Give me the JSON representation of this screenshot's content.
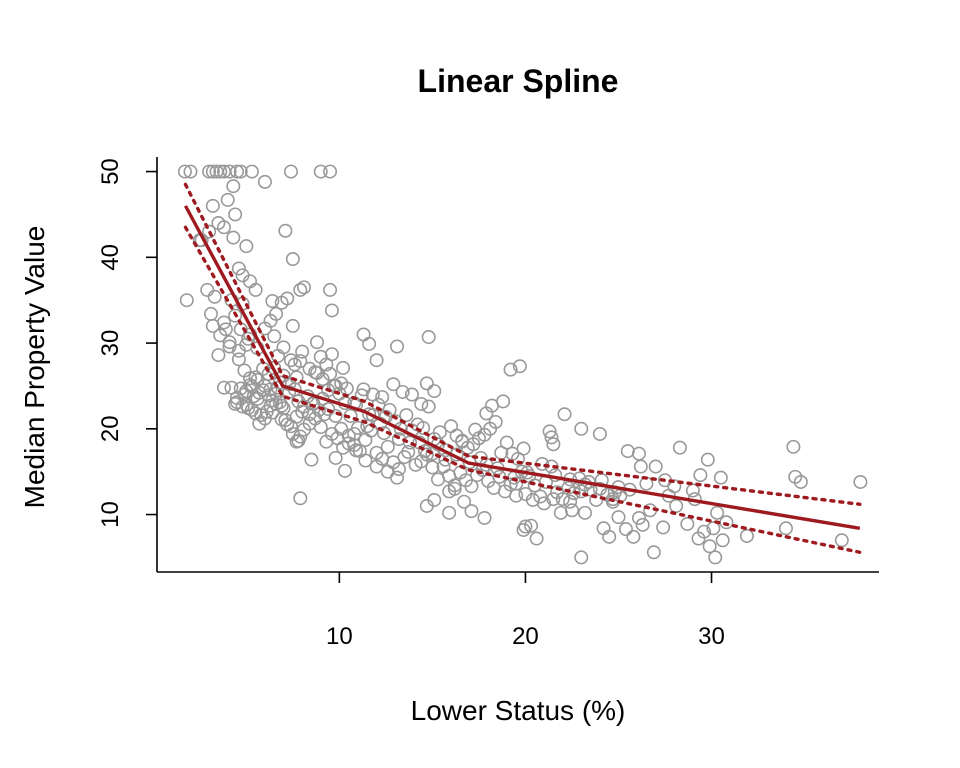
{
  "chart_data": {
    "type": "scatter",
    "title": "Linear Spline",
    "xlabel": "Lower Status (%)",
    "ylabel": "Median Property Value",
    "xlim": [
      0.2,
      39.0
    ],
    "ylim": [
      3.3,
      51.7
    ],
    "x_ticks": [
      10,
      20,
      30
    ],
    "y_ticks": [
      10,
      20,
      30,
      40,
      50
    ],
    "grid": false,
    "colors": {
      "points": "#999999",
      "fit": "#9E1A1F"
    },
    "points": [
      [
        1.7,
        50
      ],
      [
        2.0,
        50
      ],
      [
        3.0,
        50
      ],
      [
        3.2,
        50
      ],
      [
        3.4,
        50
      ],
      [
        3.6,
        50
      ],
      [
        3.8,
        50
      ],
      [
        4.1,
        50
      ],
      [
        4.5,
        50
      ],
      [
        4.7,
        50
      ],
      [
        5.3,
        50
      ],
      [
        7.4,
        50
      ],
      [
        9.0,
        50
      ],
      [
        9.5,
        50
      ],
      [
        6.0,
        48.8
      ],
      [
        4.3,
        48.3
      ],
      [
        4.0,
        46.7
      ],
      [
        3.2,
        46
      ],
      [
        3.5,
        44.0
      ],
      [
        4.4,
        45.0
      ],
      [
        3.8,
        43.5
      ],
      [
        2.5,
        42
      ],
      [
        3.0,
        43
      ],
      [
        4.3,
        42.3
      ],
      [
        7.1,
        43.1
      ],
      [
        5.0,
        41.3
      ],
      [
        4.6,
        38.7
      ],
      [
        4.8,
        37.9
      ],
      [
        5.2,
        37.2
      ],
      [
        5.5,
        36.2
      ],
      [
        2.9,
        36.2
      ],
      [
        4.8,
        34.6
      ],
      [
        3.1,
        33.4
      ],
      [
        4.4,
        33.2
      ],
      [
        3.8,
        32.4
      ],
      [
        3.2,
        32
      ],
      [
        3.9,
        31.6
      ],
      [
        4.7,
        31.6
      ],
      [
        5.2,
        31.0
      ],
      [
        4.1,
        30.1
      ],
      [
        5.0,
        29.8
      ],
      [
        4.6,
        29.1
      ],
      [
        3.5,
        28.6
      ],
      [
        6.3,
        32.6
      ],
      [
        6.6,
        33.4
      ],
      [
        6.4,
        34.9
      ],
      [
        7.2,
        35.2
      ],
      [
        6.9,
        34.7
      ],
      [
        7.5,
        39.8
      ],
      [
        7.9,
        36.2
      ],
      [
        8.1,
        36.5
      ],
      [
        9.5,
        36.2
      ],
      [
        8.8,
        30.1
      ],
      [
        9.6,
        33.8
      ],
      [
        7.5,
        32.0
      ],
      [
        8.0,
        29.0
      ],
      [
        9.0,
        28.4
      ],
      [
        9.6,
        28.7
      ],
      [
        9.3,
        27.5
      ],
      [
        10.2,
        27.1
      ],
      [
        11.3,
        31.0
      ],
      [
        11.6,
        29.9
      ],
      [
        13.1,
        29.6
      ],
      [
        14.8,
        30.7
      ],
      [
        12.0,
        28.0
      ],
      [
        7.6,
        27.5
      ],
      [
        6.7,
        28.5
      ],
      [
        6.5,
        27.1
      ],
      [
        6.2,
        26.4
      ],
      [
        5.9,
        27.0
      ],
      [
        5.5,
        26.0
      ],
      [
        5.2,
        25.1
      ],
      [
        4.9,
        24.0
      ],
      [
        4.5,
        23.1
      ],
      [
        4.2,
        24.8
      ],
      [
        3.8,
        24.8
      ],
      [
        5.0,
        22.8
      ],
      [
        5.3,
        22.2
      ],
      [
        5.6,
        23.5
      ],
      [
        5.8,
        21.6
      ],
      [
        6.1,
        22.0
      ],
      [
        6.4,
        23.3
      ],
      [
        6.6,
        24.1
      ],
      [
        6.8,
        23.1
      ],
      [
        7.0,
        22.4
      ],
      [
        7.3,
        24.3
      ],
      [
        7.6,
        24.6
      ],
      [
        7.8,
        23.2
      ],
      [
        8.1,
        22.6
      ],
      [
        8.4,
        21.7
      ],
      [
        8.6,
        23.0
      ],
      [
        8.9,
        22.2
      ],
      [
        9.2,
        21.7
      ],
      [
        9.4,
        24.5
      ],
      [
        9.7,
        25.0
      ],
      [
        10.0,
        24.1
      ],
      [
        10.3,
        23.0
      ],
      [
        10.6,
        21.5
      ],
      [
        10.9,
        22.8
      ],
      [
        11.2,
        23.9
      ],
      [
        11.5,
        20.3
      ],
      [
        11.8,
        21.6
      ],
      [
        12.1,
        22.8
      ],
      [
        12.4,
        19.5
      ],
      [
        12.7,
        22.2
      ],
      [
        13.0,
        20.9
      ],
      [
        13.3,
        20.0
      ],
      [
        13.6,
        21.6
      ],
      [
        13.9,
        19.8
      ],
      [
        14.2,
        20.5
      ],
      [
        14.5,
        20.1
      ],
      [
        14.8,
        22.6
      ],
      [
        15.1,
        18.8
      ],
      [
        15.4,
        19.6
      ],
      [
        15.7,
        17.5
      ],
      [
        16.0,
        20.3
      ],
      [
        16.3,
        19.2
      ],
      [
        16.6,
        18.5
      ],
      [
        16.9,
        17.8
      ],
      [
        17.2,
        18.2
      ],
      [
        17.5,
        18.9
      ],
      [
        17.8,
        19.3
      ],
      [
        18.1,
        20.0
      ],
      [
        18.4,
        20.8
      ],
      [
        18.7,
        17.2
      ],
      [
        19.0,
        18.4
      ],
      [
        19.3,
        17.1
      ],
      [
        19.6,
        16.5
      ],
      [
        19.9,
        17.7
      ],
      [
        5.4,
        23.8
      ],
      [
        5.7,
        24.2
      ],
      [
        6.0,
        25.0
      ],
      [
        6.3,
        24.6
      ],
      [
        6.6,
        22.9
      ],
      [
        6.9,
        21.1
      ],
      [
        7.2,
        20.5
      ],
      [
        7.5,
        19.4
      ],
      [
        7.8,
        18.6
      ],
      [
        8.1,
        19.9
      ],
      [
        8.4,
        20.6
      ],
      [
        8.7,
        21.2
      ],
      [
        9.0,
        20.2
      ],
      [
        9.3,
        18.5
      ],
      [
        9.6,
        19.4
      ],
      [
        9.9,
        18.9
      ],
      [
        10.2,
        17.8
      ],
      [
        10.5,
        19.2
      ],
      [
        10.8,
        18.1
      ],
      [
        11.1,
        17.4
      ],
      [
        11.4,
        18.7
      ],
      [
        11.7,
        19.8
      ],
      [
        12.0,
        17.2
      ],
      [
        12.3,
        16.5
      ],
      [
        12.6,
        17.9
      ],
      [
        12.9,
        16.1
      ],
      [
        13.2,
        15.3
      ],
      [
        13.5,
        16.7
      ],
      [
        13.8,
        18.4
      ],
      [
        14.1,
        15.8
      ],
      [
        14.4,
        16.2
      ],
      [
        14.7,
        17.0
      ],
      [
        15.0,
        15.5
      ],
      [
        15.3,
        14.1
      ],
      [
        15.6,
        15.6
      ],
      [
        15.9,
        14.5
      ],
      [
        16.2,
        13.4
      ],
      [
        16.5,
        14.9
      ],
      [
        16.8,
        14.0
      ],
      [
        17.1,
        13.3
      ],
      [
        17.4,
        14.6
      ],
      [
        17.7,
        15.2
      ],
      [
        18.0,
        13.9
      ],
      [
        18.3,
        13.1
      ],
      [
        18.6,
        14.4
      ],
      [
        18.9,
        12.7
      ],
      [
        19.2,
        13.5
      ],
      [
        19.5,
        12.2
      ],
      [
        19.8,
        15.0
      ],
      [
        20.2,
        14.5
      ],
      [
        20.5,
        13.4
      ],
      [
        20.8,
        12.1
      ],
      [
        21.1,
        13.8
      ],
      [
        21.4,
        15.6
      ],
      [
        21.7,
        12.6
      ],
      [
        22.0,
        11.8
      ],
      [
        22.3,
        13.1
      ],
      [
        22.6,
        12.5
      ],
      [
        22.9,
        14.2
      ],
      [
        23.2,
        13.5
      ],
      [
        23.5,
        12.9
      ],
      [
        23.8,
        11.7
      ],
      [
        24.1,
        14.0
      ],
      [
        24.4,
        12.3
      ],
      [
        24.7,
        11.5
      ],
      [
        25.0,
        13.2
      ],
      [
        25.5,
        17.4
      ],
      [
        26.1,
        17.1
      ],
      [
        26.2,
        15.6
      ],
      [
        27.0,
        15.6
      ],
      [
        27.5,
        14.0
      ],
      [
        28.3,
        17.8
      ],
      [
        28.0,
        13.3
      ],
      [
        29.1,
        11.8
      ],
      [
        29.4,
        14.6
      ],
      [
        29.8,
        16.4
      ],
      [
        30.5,
        14.3
      ],
      [
        34.4,
        17.9
      ],
      [
        34.5,
        14.4
      ],
      [
        34.8,
        13.8
      ],
      [
        38.0,
        13.8
      ],
      [
        25.0,
        9.7
      ],
      [
        25.4,
        8.3
      ],
      [
        25.8,
        7.4
      ],
      [
        26.3,
        8.8
      ],
      [
        26.7,
        10.5
      ],
      [
        26.9,
        5.6
      ],
      [
        27.4,
        8.5
      ],
      [
        28.1,
        11.0
      ],
      [
        28.7,
        8.9
      ],
      [
        29.3,
        7.2
      ],
      [
        29.6,
        8.0
      ],
      [
        30.1,
        8.4
      ],
      [
        30.3,
        10.2
      ],
      [
        30.6,
        7.0
      ],
      [
        30.2,
        5.0
      ],
      [
        29.9,
        6.3
      ],
      [
        31.9,
        7.5
      ],
      [
        34.0,
        8.4
      ],
      [
        37.0,
        7.0
      ],
      [
        23.0,
        5.0
      ],
      [
        23.2,
        10.2
      ],
      [
        23.0,
        20.0
      ],
      [
        24.0,
        19.4
      ],
      [
        24.2,
        8.4
      ],
      [
        24.5,
        7.4
      ],
      [
        22.5,
        10.5
      ],
      [
        21.9,
        10.2
      ],
      [
        21.5,
        11.8
      ],
      [
        21.0,
        11.3
      ],
      [
        20.6,
        7.2
      ],
      [
        20.3,
        8.7
      ],
      [
        19.9,
        8.2
      ],
      [
        20.0,
        8.6
      ],
      [
        19.5,
        13.6
      ],
      [
        17.8,
        9.6
      ],
      [
        17.1,
        10.4
      ],
      [
        16.7,
        11.5
      ],
      [
        16.2,
        13.0
      ],
      [
        15.9,
        12.7
      ],
      [
        15.1,
        11.7
      ],
      [
        14.7,
        11.0
      ],
      [
        13.1,
        14.3
      ],
      [
        12.6,
        15.0
      ],
      [
        12.0,
        15.6
      ],
      [
        11.4,
        16.3
      ],
      [
        10.9,
        17.5
      ],
      [
        10.3,
        15.1
      ],
      [
        9.8,
        16.6
      ],
      [
        8.5,
        16.4
      ],
      [
        7.9,
        11.9
      ],
      [
        7.7,
        18.5
      ],
      [
        7.9,
        19.1
      ],
      [
        15.9,
        10.2
      ],
      [
        14.6,
        17.4
      ],
      [
        15.3,
        18.2
      ],
      [
        16.6,
        18.6
      ],
      [
        17.9,
        15.8
      ],
      [
        17.3,
        19.9
      ],
      [
        18.2,
        22.7
      ],
      [
        18.8,
        23.2
      ],
      [
        19.2,
        26.9
      ],
      [
        19.7,
        27.3
      ],
      [
        17.9,
        21.8
      ],
      [
        15.1,
        24.4
      ],
      [
        14.7,
        25.3
      ],
      [
        14.4,
        22.9
      ],
      [
        13.9,
        24.0
      ],
      [
        13.4,
        24.3
      ],
      [
        12.9,
        25.2
      ],
      [
        12.3,
        23.7
      ],
      [
        11.8,
        24.0
      ],
      [
        11.3,
        24.6
      ],
      [
        10.8,
        23.0
      ],
      [
        10.4,
        24.7
      ],
      [
        10.1,
        25.3
      ],
      [
        9.8,
        25.0
      ],
      [
        9.5,
        26.4
      ],
      [
        9.1,
        25.8
      ],
      [
        8.8,
        26.5
      ],
      [
        8.4,
        27.0
      ],
      [
        7.7,
        26.0
      ],
      [
        7.3,
        25.2
      ],
      [
        7.0,
        26.2
      ],
      [
        6.8,
        25.4
      ],
      [
        6.7,
        24.8
      ],
      [
        6.2,
        23.9
      ],
      [
        5.9,
        24.5
      ],
      [
        5.6,
        25.7
      ],
      [
        5.3,
        24.9
      ],
      [
        5.0,
        24.4
      ],
      [
        4.7,
        24.7
      ],
      [
        4.5,
        23.6
      ],
      [
        4.4,
        22.9
      ],
      [
        4.8,
        22.6
      ],
      [
        5.1,
        22.4
      ],
      [
        5.5,
        21.8
      ],
      [
        5.7,
        20.6
      ],
      [
        6.0,
        21.2
      ],
      [
        6.4,
        21.9
      ],
      [
        6.9,
        22.7
      ],
      [
        7.1,
        21.0
      ],
      [
        7.4,
        20.3
      ],
      [
        7.7,
        21.4
      ],
      [
        8.0,
        22.0
      ],
      [
        8.3,
        23.8
      ],
      [
        8.6,
        22.9
      ],
      [
        9.1,
        23.5
      ],
      [
        9.4,
        22.3
      ],
      [
        9.8,
        21.5
      ],
      [
        10.1,
        20.0
      ],
      [
        10.5,
        18.3
      ],
      [
        10.8,
        19.4
      ],
      [
        11.0,
        20.1
      ],
      [
        11.6,
        21.7
      ],
      [
        12.2,
        20.6
      ],
      [
        12.5,
        21.4
      ],
      [
        13.2,
        18.8
      ],
      [
        13.7,
        17.3
      ],
      [
        14.3,
        18.4
      ],
      [
        15.0,
        17.1
      ],
      [
        15.7,
        16.4
      ],
      [
        16.3,
        17.0
      ],
      [
        17.0,
        16.1
      ],
      [
        17.6,
        16.6
      ],
      [
        18.5,
        15.4
      ],
      [
        19.4,
        14.3
      ],
      [
        20.1,
        14.9
      ],
      [
        20.9,
        15.9
      ],
      [
        21.6,
        14.6
      ],
      [
        22.4,
        14.1
      ],
      [
        23.4,
        13.8
      ],
      [
        24.0,
        13.0
      ],
      [
        24.8,
        12.6
      ],
      [
        25.6,
        12.9
      ],
      [
        26.5,
        13.6
      ],
      [
        27.7,
        12.2
      ],
      [
        29.0,
        12.8
      ],
      [
        30.8,
        9.1
      ],
      [
        5.1,
        30.5
      ],
      [
        5.6,
        29.4
      ],
      [
        6.0,
        31.7
      ],
      [
        6.5,
        30.8
      ],
      [
        7.0,
        29.5
      ],
      [
        7.4,
        28.0
      ],
      [
        7.9,
        27.9
      ],
      [
        8.7,
        26.6
      ],
      [
        6.3,
        22.7
      ],
      [
        5.2,
        25.9
      ],
      [
        4.9,
        26.8
      ],
      [
        4.6,
        28.1
      ],
      [
        4.1,
        29.6
      ],
      [
        3.6,
        30.9
      ],
      [
        3.3,
        35.4
      ],
      [
        4.2,
        35.0
      ],
      [
        1.8,
        35.0
      ],
      [
        2.6,
        42.0
      ],
      [
        22.1,
        21.7
      ],
      [
        21.3,
        19.7
      ],
      [
        21.4,
        19.0
      ],
      [
        21.5,
        18.2
      ],
      [
        23.0,
        12.7
      ],
      [
        26.1,
        9.6
      ],
      [
        24.7,
        11.8
      ],
      [
        25.1,
        12.2
      ],
      [
        22.4,
        11.5
      ],
      [
        20.4,
        11.7
      ],
      [
        20.0,
        12.4
      ]
    ],
    "spline_fit": {
      "knots": [
        6.95,
        11.36,
        16.95
      ],
      "x": [
        1.73,
        6.95,
        11.36,
        16.95,
        37.97
      ],
      "y": [
        46.0,
        25.0,
        22.0,
        16.0,
        8.4
      ]
    },
    "band_upper": {
      "x": [
        1.73,
        6.95,
        11.36,
        16.95,
        37.97
      ],
      "y": [
        48.5,
        26.2,
        23.2,
        16.8,
        11.2
      ]
    },
    "band_lower": {
      "x": [
        1.73,
        6.95,
        11.36,
        16.95,
        37.97
      ],
      "y": [
        43.5,
        23.8,
        20.8,
        15.2,
        5.6
      ]
    }
  }
}
